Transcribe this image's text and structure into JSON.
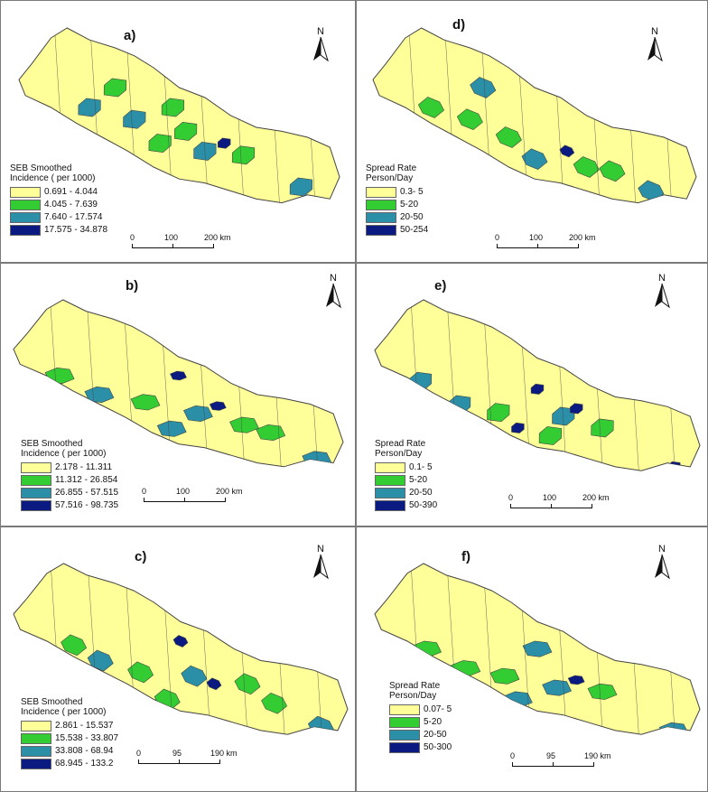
{
  "colors": {
    "class1": "#ffff99",
    "class2": "#33cc33",
    "class3": "#2b8fa8",
    "class4": "#0a1a80",
    "border": "#444444"
  },
  "panels": [
    {
      "id": "a",
      "label": "a)",
      "legend_title": [
        "SEB Smoothed",
        "Incidence ( per 1000)"
      ],
      "legend_items": [
        "0.691 - 4.044",
        "4.045 - 7.639",
        "7.640 - 17.574",
        "17.575 - 34.878"
      ],
      "scale": [
        "0",
        "100",
        "200 km"
      ],
      "north": "N"
    },
    {
      "id": "d",
      "label": "d)",
      "legend_title": [
        "Spread Rate",
        "Person/Day"
      ],
      "legend_items": [
        "0.3- 5",
        "5-20",
        "20-50",
        "50-254"
      ],
      "scale": [
        "0",
        "100",
        "200 km"
      ],
      "north": "N"
    },
    {
      "id": "b",
      "label": "b)",
      "legend_title": [
        "SEB Smoothed",
        "Incidence ( per 1000)"
      ],
      "legend_items": [
        "2.178 - 11.311",
        "11.312 - 26.854",
        "26.855 - 57.515",
        "57.516 - 98.735"
      ],
      "scale": [
        "0",
        "100",
        "200 km"
      ],
      "north": "N"
    },
    {
      "id": "e",
      "label": "e)",
      "legend_title": [
        "Spread Rate",
        "Person/Day"
      ],
      "legend_items": [
        "0.1- 5",
        "5-20",
        "20-50",
        "50-390"
      ],
      "scale": [
        "0",
        "100",
        "200 km"
      ],
      "north": "N"
    },
    {
      "id": "c",
      "label": "c)",
      "legend_title": [
        "SEB Smoothed",
        "Incidence ( per 1000)"
      ],
      "legend_items": [
        "2.861 - 15.537",
        "15.538 - 33.807",
        "33.808 - 68.94",
        "68.945 - 133.2"
      ],
      "scale": [
        "0",
        "95",
        "190 km"
      ],
      "north": "N"
    },
    {
      "id": "f",
      "label": "f)",
      "legend_title": [
        "Spread Rate",
        "Person/Day"
      ],
      "legend_items": [
        "0.07- 5",
        "5-20",
        "20-50",
        "50-300"
      ],
      "scale": [
        "0",
        "95",
        "190 km"
      ],
      "north": "N"
    }
  ]
}
